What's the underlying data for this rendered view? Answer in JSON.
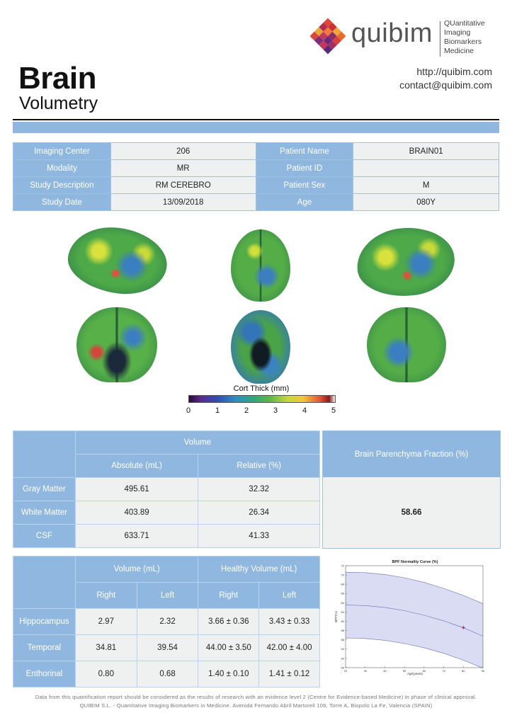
{
  "header": {
    "title": "Brain",
    "subtitle": "Volumetry",
    "website": "http://quibim.com",
    "email": "contact@quibim.com"
  },
  "logo": {
    "wordmark": "quibim",
    "tagline": [
      "QUantitative",
      "Imaging",
      "Biomarkers",
      "Medicine"
    ]
  },
  "patient_info": {
    "rows": [
      {
        "label1": "Imaging Center",
        "value1": "206",
        "label2": "Patient Name",
        "value2": "BRAIN01"
      },
      {
        "label1": "Modality",
        "value1": "MR",
        "label2": "Patient ID",
        "value2": ""
      },
      {
        "label1": "Study Description",
        "value1": "RM CEREBRO",
        "label2": "Patient Sex",
        "value2": "M"
      },
      {
        "label1": "Study Date",
        "value1": "13/09/2018",
        "label2": "Age",
        "value2": "080Y"
      }
    ]
  },
  "colorbar": {
    "title": "Cort Thick (mm)",
    "ticks": [
      "0",
      "1",
      "2",
      "3",
      "4",
      "5"
    ]
  },
  "volume_table": {
    "header": "Volume",
    "col_abs": "Absolute (mL)",
    "col_rel": "Relative (%)",
    "rows": [
      {
        "label": "Gray Matter",
        "absolute": "495.61",
        "relative": "32.32"
      },
      {
        "label": "White Matter",
        "absolute": "403.89",
        "relative": "26.34"
      },
      {
        "label": "CSF",
        "absolute": "633.71",
        "relative": "41.33"
      }
    ],
    "bpf_label": "Brain Parenchyma Fraction (%)",
    "bpf_value": "58.66"
  },
  "regional_table": {
    "volume_header": "Volume (mL)",
    "healthy_header": "Healthy Volume (mL)",
    "right": "Right",
    "left": "Left",
    "rows": [
      {
        "label": "Hippocampus",
        "right": "2.97",
        "left": "2.32",
        "healthy_right": "3.66 ± 0.36",
        "healthy_left": "3.43 ± 0.33"
      },
      {
        "label": "Temporal",
        "right": "34.81",
        "left": "39.54",
        "healthy_right": "44.00 ± 3.50",
        "healthy_left": "42.00 ± 4.00"
      },
      {
        "label": "Enthorinal",
        "right": "0.80",
        "left": "0.68",
        "healthy_right": "1.40 ± 0.10",
        "healthy_left": "1.41 ± 0.12"
      }
    ]
  },
  "chart_data": {
    "type": "line",
    "title": "BPF Normality Curve (%)",
    "xlabel": "Age(years)",
    "ylabel": "BPF(%)",
    "xlim": [
      20,
      90
    ],
    "ylim": [
      50,
      72
    ],
    "x_ticks": [
      "20",
      "30",
      "40",
      "50",
      "60",
      "70",
      "80",
      "90"
    ],
    "y_ticks": [
      "50",
      "52",
      "54",
      "56",
      "58",
      "60",
      "62",
      "64",
      "66",
      "68",
      "70",
      "72"
    ],
    "x": [
      20,
      30,
      40,
      50,
      60,
      70,
      80,
      90
    ],
    "series": [
      {
        "values": [
          70.6,
          70.5,
          70.1,
          69.4,
          68.4,
          67.1,
          65.6,
          63.8
        ]
      },
      {
        "values": [
          63.5,
          63.4,
          63.0,
          62.3,
          61.3,
          60.1,
          58.6,
          56.8
        ]
      },
      {
        "values": [
          56.4,
          56.3,
          55.9,
          55.2,
          54.3,
          53.1,
          51.6,
          49.9
        ]
      }
    ],
    "points": [
      {
        "x": 80,
        "y": 58.66
      }
    ],
    "colors": {
      "band": "#c9cdec",
      "line": "#6a6fb0",
      "point": "#a01040"
    },
    "grid": false
  },
  "footer": {
    "line1": "Data from this quantification report should be considered as the results of research with an evidence level 2 (Centre for Evidence-based Medicine) in phase of clinical approval.",
    "line2": "QUIBIM S.L. - Quantitative Imaging Biomarkers in Medicine. Avenida Fernando Abril Martorell 106, Torre A, Biopolo La Fe, Valencia (SPAIN)"
  }
}
